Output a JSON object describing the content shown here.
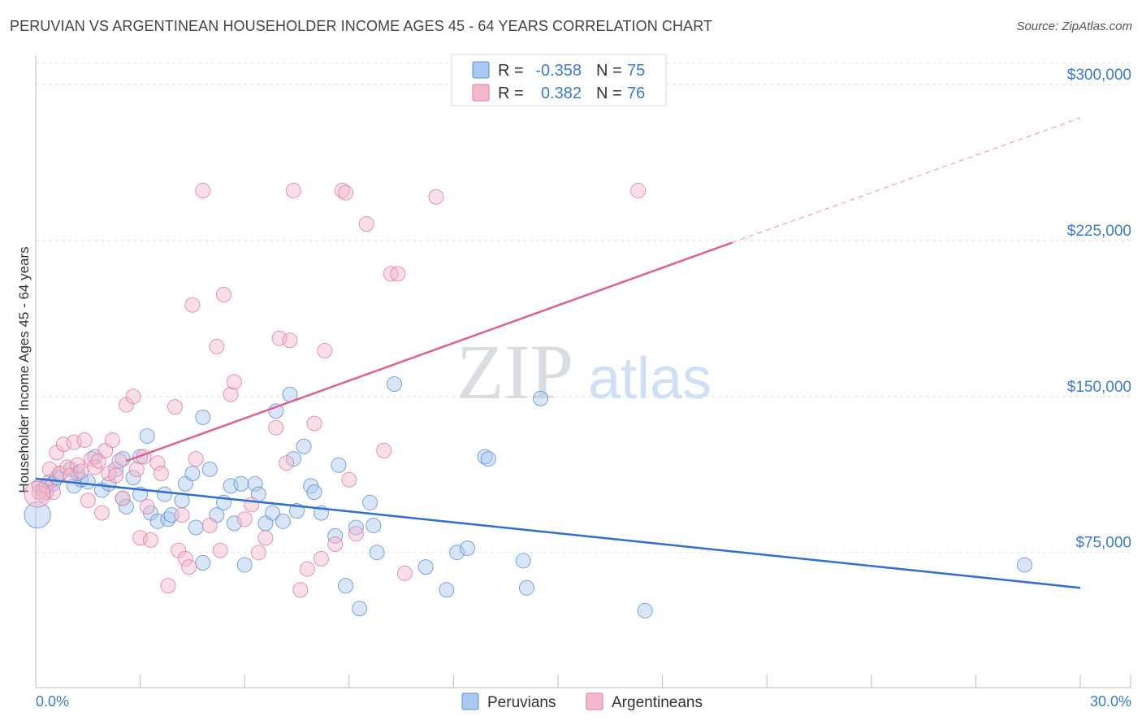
{
  "title": "PERUVIAN VS ARGENTINEAN HOUSEHOLDER INCOME AGES 45 - 64 YEARS CORRELATION CHART",
  "source": "Source: ZipAtlas.com",
  "watermark": {
    "zip": "ZIP",
    "atlas": "atlas"
  },
  "colors": {
    "peruvians_fill": "#a9c8f0",
    "peruvians_stroke": "#5b8fd6",
    "peruvians_line": "#2f6fd0",
    "argentineans_fill": "#f6b8cc",
    "argentineans_stroke": "#e07a9c",
    "argentineans_line": "#e0608c",
    "tick_text": "#3a7bd5",
    "grid": "#dde3ea"
  },
  "legend": {
    "rows": [
      {
        "r_label": "R =",
        "r_value": "-0.358",
        "n_label": "N =",
        "n_value": "75"
      },
      {
        "r_label": "R =",
        "r_value": "0.382",
        "n_label": "N =",
        "n_value": "76"
      }
    ]
  },
  "chart_data": {
    "type": "scatter",
    "title": "PERUVIAN VS ARGENTINEAN HOUSEHOLDER INCOME AGES 45 - 64 YEARS CORRELATION CHART",
    "xlabel": "",
    "ylabel": "Householder Income Ages 45 - 64 years",
    "xlim": [
      0,
      30
    ],
    "ylim": [
      10000,
      310000
    ],
    "x_tick_labels": [
      "0.0%",
      "30.0%"
    ],
    "y_ticks": [
      75000,
      150000,
      225000,
      300000
    ],
    "y_tick_labels": [
      "$75,000",
      "$150,000",
      "$225,000",
      "$300,000"
    ],
    "grid": true,
    "legend_position": "bottom",
    "series": [
      {
        "name": "Peruvians",
        "trend": {
          "x": [
            0,
            30
          ],
          "y": [
            110500,
            58000
          ]
        },
        "points": [
          [
            0.1,
            107000
          ],
          [
            0.2,
            105000
          ],
          [
            0.3,
            104000
          ],
          [
            0.4,
            109000
          ],
          [
            0.5,
            108000
          ],
          [
            0.6,
            111000
          ],
          [
            0.7,
            113000
          ],
          [
            1.0,
            115000
          ],
          [
            1.1,
            107000
          ],
          [
            1.3,
            110000
          ],
          [
            1.5,
            109000
          ],
          [
            1.7,
            121000
          ],
          [
            1.9,
            105000
          ],
          [
            2.1,
            108000
          ],
          [
            2.3,
            115000
          ],
          [
            2.5,
            101000
          ],
          [
            2.5,
            120000
          ],
          [
            2.6,
            97000
          ],
          [
            2.8,
            111000
          ],
          [
            3.0,
            121000
          ],
          [
            3.0,
            103000
          ],
          [
            3.2,
            131000
          ],
          [
            3.3,
            94000
          ],
          [
            3.5,
            90000
          ],
          [
            3.7,
            103000
          ],
          [
            3.8,
            91000
          ],
          [
            3.9,
            93000
          ],
          [
            4.2,
            100000
          ],
          [
            4.3,
            108000
          ],
          [
            4.5,
            113000
          ],
          [
            4.6,
            87000
          ],
          [
            4.8,
            70000
          ],
          [
            4.8,
            140000
          ],
          [
            5.0,
            115000
          ],
          [
            5.2,
            93000
          ],
          [
            5.4,
            99000
          ],
          [
            5.6,
            107000
          ],
          [
            5.7,
            89000
          ],
          [
            5.9,
            108000
          ],
          [
            6.0,
            69000
          ],
          [
            6.3,
            108000
          ],
          [
            6.4,
            103000
          ],
          [
            6.6,
            89000
          ],
          [
            6.8,
            94000
          ],
          [
            6.9,
            143000
          ],
          [
            7.1,
            90000
          ],
          [
            7.3,
            151000
          ],
          [
            7.4,
            120000
          ],
          [
            7.5,
            95000
          ],
          [
            7.7,
            126000
          ],
          [
            7.9,
            107000
          ],
          [
            8.0,
            104000
          ],
          [
            8.2,
            94000
          ],
          [
            8.6,
            83000
          ],
          [
            8.7,
            117000
          ],
          [
            8.9,
            59000
          ],
          [
            9.2,
            87000
          ],
          [
            9.3,
            48000
          ],
          [
            9.6,
            99000
          ],
          [
            9.7,
            88000
          ],
          [
            9.8,
            75000
          ],
          [
            10.3,
            156000
          ],
          [
            11.2,
            68000
          ],
          [
            11.8,
            57000
          ],
          [
            12.1,
            75000
          ],
          [
            12.4,
            77000
          ],
          [
            12.9,
            121000
          ],
          [
            13.0,
            120000
          ],
          [
            14.0,
            71000
          ],
          [
            14.1,
            58000
          ],
          [
            14.5,
            149000
          ],
          [
            17.5,
            47000
          ],
          [
            28.4,
            69000
          ],
          [
            0.05,
            93000
          ],
          [
            1.2,
            113000
          ]
        ]
      },
      {
        "name": "Argentineans",
        "trend": {
          "x": [
            2.6,
            20.0
          ],
          "y": [
            119000,
            224000
          ]
        },
        "trend_dashed": {
          "x": [
            20.0,
            30.0
          ],
          "y": [
            224000,
            284000
          ]
        },
        "points": [
          [
            0.1,
            104000
          ],
          [
            0.2,
            103000
          ],
          [
            0.3,
            107000
          ],
          [
            0.4,
            115000
          ],
          [
            0.5,
            104000
          ],
          [
            0.6,
            123000
          ],
          [
            0.7,
            113000
          ],
          [
            0.8,
            127000
          ],
          [
            0.9,
            116000
          ],
          [
            1.0,
            112000
          ],
          [
            1.1,
            128000
          ],
          [
            1.2,
            117000
          ],
          [
            1.3,
            114000
          ],
          [
            1.4,
            129000
          ],
          [
            1.5,
            100000
          ],
          [
            1.6,
            120000
          ],
          [
            1.7,
            116000
          ],
          [
            1.8,
            119000
          ],
          [
            1.9,
            94000
          ],
          [
            2.0,
            124000
          ],
          [
            2.1,
            113000
          ],
          [
            2.2,
            129000
          ],
          [
            2.3,
            112000
          ],
          [
            2.4,
            119000
          ],
          [
            2.5,
            101000
          ],
          [
            2.6,
            146000
          ],
          [
            2.8,
            150000
          ],
          [
            2.9,
            115000
          ],
          [
            3.0,
            82000
          ],
          [
            3.1,
            121000
          ],
          [
            3.2,
            97000
          ],
          [
            3.3,
            81000
          ],
          [
            3.5,
            118000
          ],
          [
            3.6,
            113000
          ],
          [
            3.8,
            59000
          ],
          [
            4.0,
            145000
          ],
          [
            4.1,
            76000
          ],
          [
            4.2,
            93000
          ],
          [
            4.3,
            72000
          ],
          [
            4.4,
            68000
          ],
          [
            4.5,
            194000
          ],
          [
            4.6,
            120000
          ],
          [
            4.8,
            249000
          ],
          [
            5.0,
            88000
          ],
          [
            5.2,
            174000
          ],
          [
            5.3,
            76000
          ],
          [
            5.4,
            199000
          ],
          [
            5.6,
            151000
          ],
          [
            5.7,
            157000
          ],
          [
            6.0,
            91000
          ],
          [
            6.2,
            98000
          ],
          [
            6.4,
            75000
          ],
          [
            6.6,
            82000
          ],
          [
            6.9,
            135000
          ],
          [
            7.0,
            178000
          ],
          [
            7.2,
            118000
          ],
          [
            7.3,
            177000
          ],
          [
            7.4,
            249000
          ],
          [
            7.6,
            57000
          ],
          [
            7.8,
            67000
          ],
          [
            8.0,
            137000
          ],
          [
            8.2,
            72000
          ],
          [
            8.3,
            172000
          ],
          [
            8.6,
            79000
          ],
          [
            8.8,
            249000
          ],
          [
            8.9,
            248000
          ],
          [
            9.0,
            110000
          ],
          [
            9.2,
            84000
          ],
          [
            9.5,
            233000
          ],
          [
            10.0,
            124000
          ],
          [
            10.2,
            209000
          ],
          [
            10.4,
            209000
          ],
          [
            10.6,
            65000
          ],
          [
            11.5,
            246000
          ],
          [
            17.3,
            249000
          ],
          [
            0.05,
            103000
          ]
        ]
      }
    ]
  },
  "bottom_legend": [
    {
      "label": "Peruvians"
    },
    {
      "label": "Argentineans"
    }
  ]
}
